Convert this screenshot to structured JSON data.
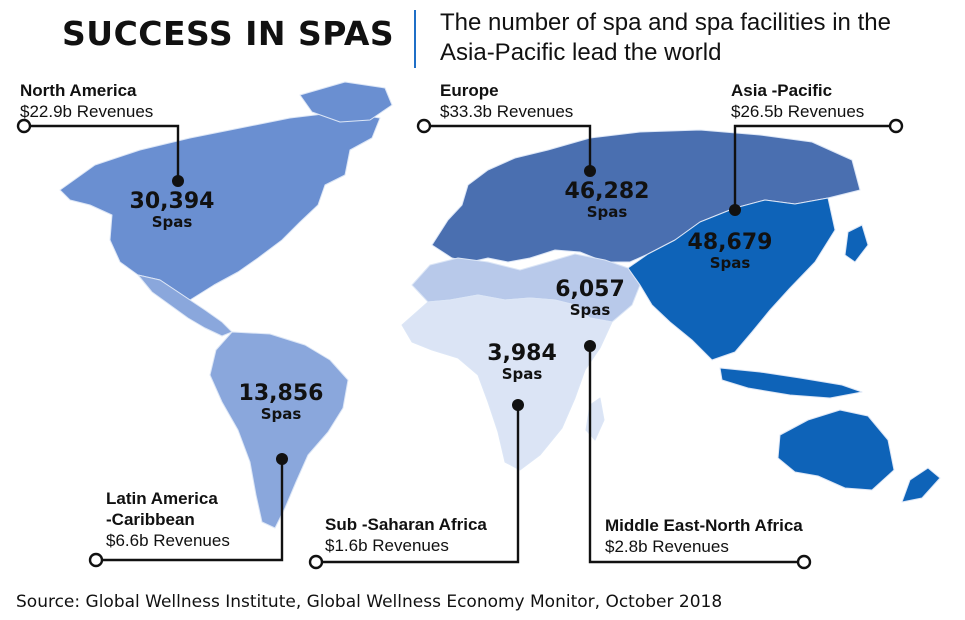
{
  "title": "SUCCESS IN SPAS",
  "subtitle": "The number of spa and spa facilities in the Asia-Pacific lead the world",
  "colors": {
    "north_america": "#6a8fd1",
    "latin_america": "#8aa7dc",
    "europe": "#4a6fb0",
    "asia_pacific": "#0e63b8",
    "mena": "#b8c9ea",
    "sub_saharan_africa": "#dbe4f5",
    "border": "#dce6f6",
    "accent": "#1f6fc7"
  },
  "regions": {
    "north_america": {
      "name": "North America",
      "revenue": "$22.9b Revenues",
      "spas": "30,394",
      "unit": "Spas"
    },
    "europe": {
      "name": "Europe",
      "revenue": "$33.3b Revenues",
      "spas": "46,282",
      "unit": "Spas"
    },
    "asia_pacific": {
      "name": "Asia -Pacific",
      "revenue": "$26.5b Revenues",
      "spas": "48,679",
      "unit": "Spas"
    },
    "latin_america": {
      "name_line1": "Latin America",
      "name_line2": "-Caribbean",
      "revenue": "$6.6b Revenues",
      "spas": "13,856",
      "unit": "Spas"
    },
    "sub_saharan_africa": {
      "name": "Sub -Saharan Africa",
      "revenue": "$1.6b Revenues",
      "spas": "3,984",
      "unit": "Spas"
    },
    "mena": {
      "name": "Middle East-North Africa",
      "revenue": "$2.8b Revenues",
      "spas": "6,057",
      "unit": "Spas"
    }
  },
  "source": "Source: Global Wellness Institute, Global Wellness Economy Monitor, October 2018"
}
